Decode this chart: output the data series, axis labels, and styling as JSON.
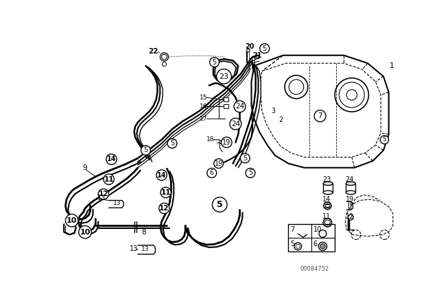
{
  "bg_color": "#ffffff",
  "line_color": "#000000",
  "fig_width": 6.4,
  "fig_height": 4.48,
  "dpi": 100,
  "watermark": "00084752"
}
